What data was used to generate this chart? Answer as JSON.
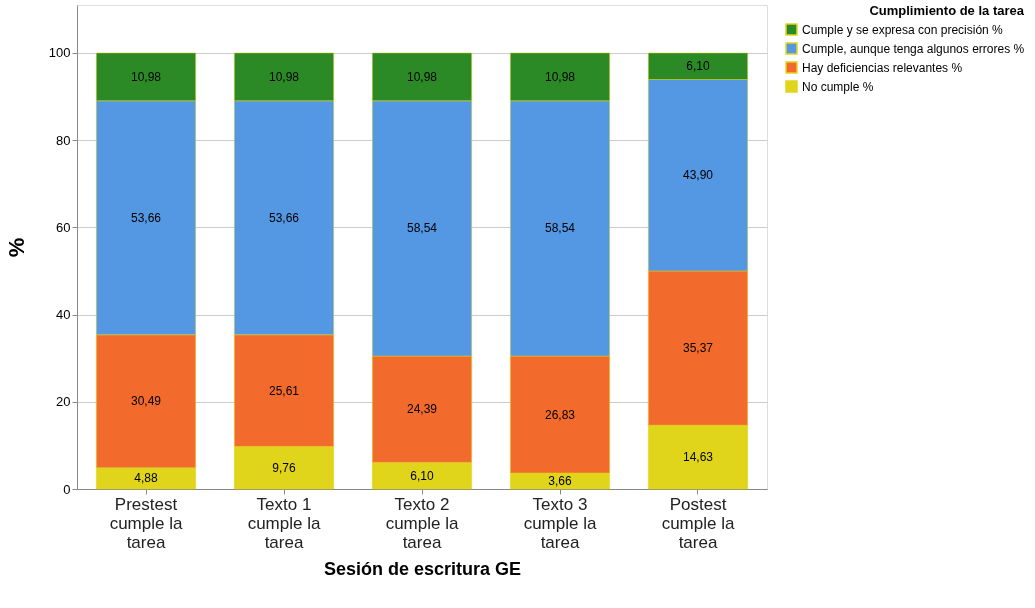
{
  "chart_data": {
    "type": "bar",
    "stacked": true,
    "xlabel": "Sesión de escritura GE",
    "ylabel": "%",
    "legend_title": "Cumplimiento de la tarea",
    "categories": [
      "Prestest cumple la tarea",
      "Texto 1 cumple la tarea",
      "Texto 2 cumple la tarea",
      "Texto 3 cumple la tarea",
      "Postest cumple la tarea"
    ],
    "series": [
      {
        "name": "No cumple %",
        "color": "#e1d51b",
        "values": [
          4.88,
          9.76,
          6.1,
          3.66,
          14.63
        ],
        "value_labels": [
          "4,88",
          "9,76",
          "6,10",
          "3,66",
          "14,63"
        ]
      },
      {
        "name": "Hay deficiencias relevantes %",
        "color": "#f26b2c",
        "values": [
          30.49,
          25.61,
          24.39,
          26.83,
          35.37
        ],
        "value_labels": [
          "30,49",
          "25,61",
          "24,39",
          "26,83",
          "35,37"
        ]
      },
      {
        "name": "Cumple, aunque tenga algunos errores %",
        "color": "#5497e3",
        "values": [
          53.66,
          53.66,
          58.54,
          58.54,
          43.9
        ],
        "value_labels": [
          "53,66",
          "53,66",
          "58,54",
          "58,54",
          "43,90"
        ]
      },
      {
        "name": "Cumple y se expresa con precisión %",
        "color": "#2b8a25",
        "values": [
          10.98,
          10.98,
          10.98,
          10.98,
          6.1
        ],
        "value_labels": [
          "10,98",
          "10,98",
          "10,98",
          "10,98",
          "6,10"
        ]
      }
    ],
    "ylim": [
      0,
      111
    ],
    "yticks": [
      0,
      20,
      40,
      60,
      80,
      100
    ],
    "grid": "y",
    "legend": "top right"
  }
}
